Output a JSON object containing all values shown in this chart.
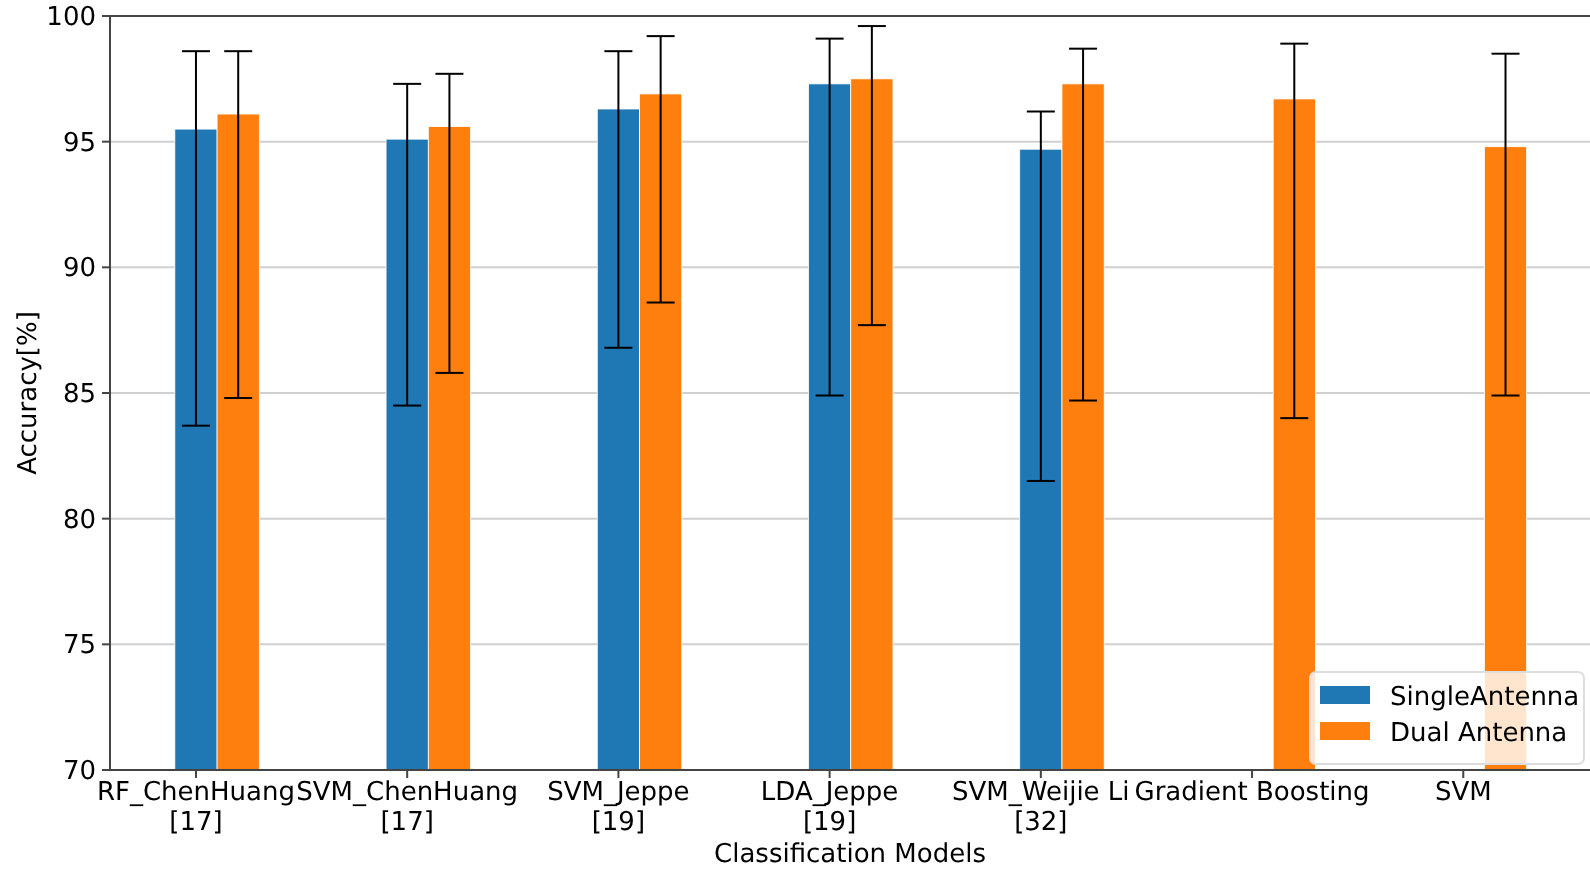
{
  "chart_data": {
    "type": "bar",
    "xlabel": "Classification Models",
    "ylabel": "Accuracy[%]",
    "categories": [
      "RF_ChenHuang\n[17]",
      "SVM_ChenHuang\n[17]",
      "SVM_Jeppe\n[19]",
      "LDA_Jeppe\n[19]",
      "SVM_Weijie Li\n[32]",
      "Gradient Boosting",
      "SVM"
    ],
    "series": [
      {
        "name": "SingleAntenna",
        "color": "#1f77b4",
        "values": [
          95.5,
          95.1,
          96.3,
          97.3,
          94.7,
          null,
          null
        ],
        "errors": [
          [
            83.7,
            98.6
          ],
          [
            84.5,
            97.3
          ],
          [
            86.8,
            98.6
          ],
          [
            84.9,
            99.1
          ],
          [
            81.5,
            96.2
          ],
          null,
          null
        ]
      },
      {
        "name": "Dual Antenna",
        "color": "#ff7f0e",
        "values": [
          96.1,
          95.6,
          96.9,
          97.5,
          97.3,
          96.7,
          94.8
        ],
        "errors": [
          [
            84.8,
            98.6
          ],
          [
            85.8,
            97.7
          ],
          [
            88.6,
            99.2
          ],
          [
            87.7,
            99.6
          ],
          [
            84.7,
            98.7
          ],
          [
            84.0,
            98.9
          ],
          [
            84.9,
            98.5
          ]
        ]
      }
    ],
    "ylim": [
      70,
      100
    ],
    "yticks": [
      70,
      75,
      80,
      85,
      90,
      95,
      100
    ],
    "grid": "y",
    "legend": "bottom right"
  }
}
